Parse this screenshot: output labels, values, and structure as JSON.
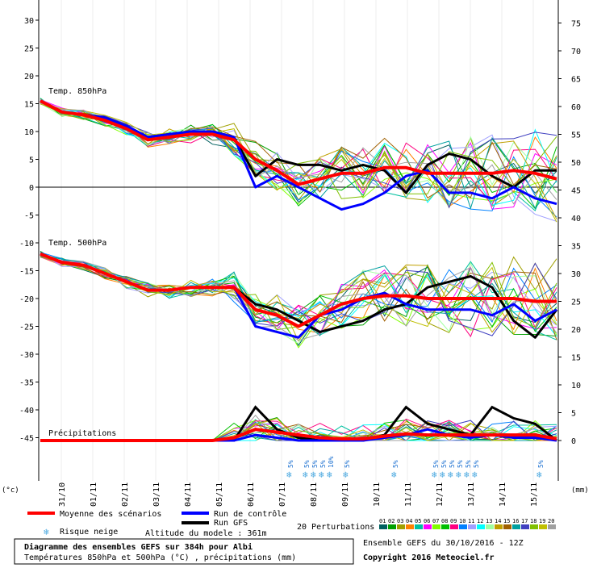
{
  "chart_data": {
    "type": "line",
    "x_dates": [
      "31/10",
      "01/11",
      "02/11",
      "03/11",
      "04/11",
      "05/11",
      "06/11",
      "07/11",
      "08/11",
      "09/11",
      "10/11",
      "11/11",
      "12/11",
      "13/11",
      "14/11",
      "15/11"
    ],
    "left_axis": {
      "unit": "(°c)",
      "ticks": [
        30,
        25,
        20,
        15,
        10,
        5,
        0,
        -5,
        -10,
        -15,
        -20,
        -25,
        -30,
        -35,
        -40,
        -45
      ],
      "ylim": [
        -45,
        30
      ]
    },
    "right_axis": {
      "unit": "(mm)",
      "ticks": [
        75,
        70,
        65,
        60,
        55,
        50,
        45,
        40,
        35,
        30,
        25,
        20,
        15,
        10,
        5,
        0
      ],
      "ylim": [
        0,
        75
      ]
    },
    "panels": {
      "t850_label": "Temp. 850hPa",
      "t500_label": "Temp. 500hPa",
      "precip_label": "Précipitations"
    },
    "series": [
      {
        "name": "Moyenne des scénarios",
        "color": "#ff0000",
        "t850": [
          15.5,
          13.5,
          13.0,
          12.0,
          10.5,
          8.5,
          9.0,
          9.5,
          9.5,
          8.5,
          5.0,
          3.0,
          0.5,
          1.5,
          2.5,
          2.5,
          3.5,
          3.5,
          2.5,
          2.5,
          2.5,
          2.5,
          3.0,
          2.5,
          1.5
        ],
        "t500": [
          -12,
          -13.5,
          -14,
          -15.5,
          -17,
          -18.5,
          -18.5,
          -18,
          -18,
          -18,
          -22,
          -23,
          -25,
          -23,
          -21,
          -20,
          -19.5,
          -19.5,
          -20,
          -20,
          -20,
          -20,
          -20,
          -20.5,
          -20.5
        ],
        "precip": [
          0,
          0,
          0,
          0,
          0,
          0,
          0,
          0,
          0,
          0.5,
          2,
          1.5,
          1,
          0.5,
          0.3,
          0.3,
          0.8,
          1.2,
          1,
          1,
          1,
          1,
          1,
          1,
          0.3
        ]
      },
      {
        "name": "Run de contrôle",
        "color": "#0000ff",
        "t850": [
          15.5,
          13.5,
          13.0,
          12.5,
          11.0,
          9.0,
          9.5,
          10,
          10,
          9,
          0,
          2,
          0,
          -2,
          -4,
          -3,
          -1,
          2,
          3,
          -1,
          -1,
          -2,
          0,
          -2,
          -3
        ],
        "t500": [
          -12,
          -13.5,
          -14,
          -15.5,
          -17,
          -18.5,
          -18.5,
          -18,
          -18,
          -18,
          -25,
          -26,
          -27,
          -23,
          -22,
          -20,
          -19,
          -21,
          -22,
          -22,
          -22,
          -23,
          -21,
          -24,
          -22
        ],
        "precip": [
          0,
          0,
          0,
          0,
          0,
          0,
          0,
          0,
          0,
          0,
          1,
          0.5,
          0,
          0,
          0,
          0,
          0.5,
          1,
          2,
          1,
          0.5,
          1,
          0.5,
          0.5,
          0
        ]
      },
      {
        "name": "Run GFS",
        "color": "#000000",
        "t850": [
          15.5,
          13.5,
          13.0,
          12.5,
          11.0,
          9.0,
          9.5,
          10,
          10,
          9,
          2,
          5,
          4,
          4,
          3,
          4,
          3,
          -1,
          4,
          6,
          5,
          2,
          0,
          3,
          3
        ],
        "t500": [
          -12,
          -13.5,
          -14,
          -15.5,
          -17,
          -18.5,
          -18.5,
          -18,
          -18,
          -18,
          -21,
          -22,
          -24,
          -26,
          -25,
          -24,
          -22,
          -21,
          -18,
          -17,
          -16,
          -18,
          -24,
          -27,
          -22
        ],
        "precip": [
          0,
          0,
          0,
          0,
          0,
          0,
          0,
          0,
          0,
          0,
          6,
          2,
          0.5,
          0,
          0,
          0,
          1,
          6,
          3,
          2,
          1,
          6,
          4,
          3,
          0
        ]
      }
    ],
    "snow_risk": [
      {
        "x": "06/11",
        "label": "5%"
      },
      {
        "x": "07/11",
        "label": "5%"
      },
      {
        "x": "07/11",
        "label": "5%"
      },
      {
        "x": "07/11",
        "label": "5%"
      },
      {
        "x": "08/11",
        "label": "10%"
      },
      {
        "x": "08/11",
        "label": "5%"
      },
      {
        "x": "10/11",
        "label": "5%"
      },
      {
        "x": "11/11",
        "label": "5%"
      },
      {
        "x": "11/11",
        "label": "5%"
      },
      {
        "x": "12/11",
        "label": "5%"
      },
      {
        "x": "12/11",
        "label": "5%"
      },
      {
        "x": "12/11",
        "label": "5%"
      },
      {
        "x": "12/11",
        "label": "5%"
      },
      {
        "x": "14/11",
        "label": "5%"
      }
    ]
  },
  "legend": {
    "mean": "Moyenne des scénarios",
    "control": "Run de contrôle",
    "gfs": "Run GFS",
    "snow": "Risque neige",
    "altitude": "Altitude du modele : 361m",
    "perturbations": "20 Perturbations",
    "pert_numbers": [
      "01",
      "02",
      "03",
      "04",
      "05",
      "06",
      "07",
      "08",
      "09",
      "10",
      "11",
      "12",
      "13",
      "14",
      "15",
      "16",
      "17",
      "18",
      "19",
      "20"
    ],
    "pert_colors": [
      "#006060",
      "#00a000",
      "#a0a000",
      "#ff8000",
      "#00c0a0",
      "#ff00ff",
      "#80ff00",
      "#00c000",
      "#ff0080",
      "#0080ff",
      "#a0a0ff",
      "#00ffff",
      "#a0ffa0",
      "#c0a000",
      "#a06000",
      "#00a0a0",
      "#4040c0",
      "#80c000",
      "#c0c000",
      "#a0a0a0"
    ]
  },
  "info": {
    "title": "Diagramme des ensembles GEFS sur 384h pour Albi",
    "subtitle": "Températures 850hPa et 500hPa (°C) , précipitations (mm)",
    "ensemble": "Ensemble GEFS du 30/10/2016 - 12Z",
    "copyright": "Copyright 2016 Meteociel.fr"
  }
}
